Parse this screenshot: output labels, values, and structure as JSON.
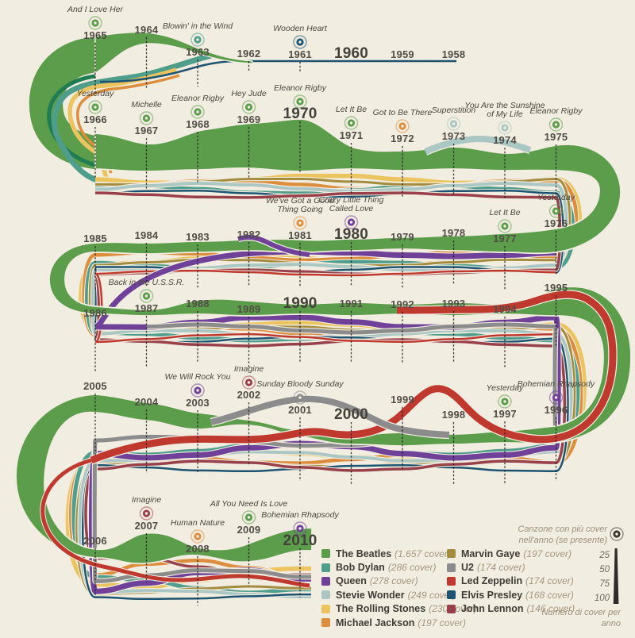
{
  "chart_data": {
    "type": "area",
    "subtype": "serpentine-streamgraph-timeline",
    "description": "Cover songs per artist per year, 1958-2010, drawn as a snaking multi-row stream; ribbon thickness encodes number of covers per year; a bullseye marks the most-covered song of each year when present.",
    "legend_position": "bottom-right",
    "captions": {
      "top_song_caption": "Canzone con più cover nell'anno (se presente)",
      "thickness_caption": "Numero di cover per anno"
    },
    "scale": {
      "values": [
        "25",
        "50",
        "75",
        "100"
      ]
    },
    "artists": [
      {
        "key": "beatles",
        "name": "The Beatles",
        "count_label": "(1.657 cover)",
        "color": "#5b9d4b",
        "column": 1
      },
      {
        "key": "dylan",
        "name": "Bob Dylan",
        "count_label": "(286 cover)",
        "color": "#4f9d8b",
        "column": 1
      },
      {
        "key": "queen",
        "name": "Queen",
        "count_label": "(278 cover)",
        "color": "#6f4199",
        "column": 1
      },
      {
        "key": "stevie",
        "name": "Stevie Wonder",
        "count_label": "(249 cover)",
        "color": "#abc7c3",
        "column": 1
      },
      {
        "key": "stones",
        "name": "The Rolling Stones",
        "count_label": "(230 cover)",
        "color": "#ecc45f",
        "column": 1
      },
      {
        "key": "jackson",
        "name": "Michael Jackson",
        "count_label": "(197 cover)",
        "color": "#dc8e3d",
        "column": 1
      },
      {
        "key": "gaye",
        "name": "Marvin Gaye",
        "count_label": "(197 cover)",
        "color": "#a48c3f",
        "column": 2
      },
      {
        "key": "u2",
        "name": "U2",
        "count_label": "(174 cover)",
        "color": "#8c8c8c",
        "column": 2
      },
      {
        "key": "ledzep",
        "name": "Led Zeppelin",
        "count_label": "(174 cover)",
        "color": "#c0392f",
        "column": 2
      },
      {
        "key": "elvis",
        "name": "Elvis Presley",
        "count_label": "(168 cover)",
        "color": "#1c5471",
        "column": 2
      },
      {
        "key": "lennon",
        "name": "John Lennon",
        "count_label": "(146 cover)",
        "color": "#98414a",
        "column": 2
      }
    ],
    "years": [
      {
        "label": "1965",
        "row": 0,
        "col": 0,
        "song": "And I Love Her",
        "artist": "beatles"
      },
      {
        "label": "1964",
        "row": 0,
        "col": 1
      },
      {
        "label": "1963",
        "row": 0,
        "col": 2,
        "song": "Blowin' in the Wind",
        "artist": "dylan"
      },
      {
        "label": "1962",
        "row": 0,
        "col": 3
      },
      {
        "label": "1961",
        "row": 0,
        "col": 4,
        "song": "Wooden Heart",
        "artist": "elvis"
      },
      {
        "label": "1960",
        "row": 0,
        "col": 5,
        "major": true
      },
      {
        "label": "1959",
        "row": 0,
        "col": 6
      },
      {
        "label": "1958",
        "row": 0,
        "col": 7
      },
      {
        "label": "1966",
        "row": 1,
        "col": 0,
        "song": "Yesterday",
        "artist": "beatles"
      },
      {
        "label": "1967",
        "row": 1,
        "col": 1,
        "song": "Michelle",
        "artist": "beatles"
      },
      {
        "label": "1968",
        "row": 1,
        "col": 2,
        "song": "Eleanor Rigby",
        "artist": "beatles"
      },
      {
        "label": "1969",
        "row": 1,
        "col": 3,
        "song": "Hey Jude",
        "artist": "beatles"
      },
      {
        "label": "1970",
        "row": 1,
        "col": 4,
        "major": true,
        "song": "Eleanor Rigby",
        "artist": "beatles"
      },
      {
        "label": "1971",
        "row": 1,
        "col": 5,
        "song": "Let It Be",
        "artist": "beatles"
      },
      {
        "label": "1972",
        "row": 1,
        "col": 6,
        "song": "Got to Be There",
        "artist": "jackson"
      },
      {
        "label": "1973",
        "row": 1,
        "col": 7,
        "song": "Superstition",
        "artist": "stevie"
      },
      {
        "label": "1974",
        "row": 1,
        "col": 8,
        "song": "You Are the Sunshine of My Life",
        "artist": "stevie"
      },
      {
        "label": "1975",
        "row": 1,
        "col": 9,
        "song": "Eleanor Rigby",
        "artist": "beatles"
      },
      {
        "label": "1985",
        "row": 2,
        "col": 0
      },
      {
        "label": "1984",
        "row": 2,
        "col": 1
      },
      {
        "label": "1983",
        "row": 2,
        "col": 2
      },
      {
        "label": "1982",
        "row": 2,
        "col": 3
      },
      {
        "label": "1981",
        "row": 2,
        "col": 4,
        "song": "We've Got a Good Thing Going",
        "artist": "jackson"
      },
      {
        "label": "1980",
        "row": 2,
        "col": 5,
        "major": true,
        "song": "Crazy Little Thing Called Love",
        "artist": "queen"
      },
      {
        "label": "1979",
        "row": 2,
        "col": 6
      },
      {
        "label": "1978",
        "row": 2,
        "col": 7
      },
      {
        "label": "1977",
        "row": 2,
        "col": 8,
        "song": "Let It Be",
        "artist": "beatles"
      },
      {
        "label": "1976",
        "row": 2,
        "col": 9,
        "song": "Yesterday",
        "artist": "beatles"
      },
      {
        "label": "1986",
        "row": 3,
        "col": 0
      },
      {
        "label": "1987",
        "row": 3,
        "col": 1,
        "song": "Back in the U.S.S.R.",
        "artist": "beatles"
      },
      {
        "label": "1988",
        "row": 3,
        "col": 2
      },
      {
        "label": "1989",
        "row": 3,
        "col": 3
      },
      {
        "label": "1990",
        "row": 3,
        "col": 4,
        "major": true
      },
      {
        "label": "1991",
        "row": 3,
        "col": 5
      },
      {
        "label": "1992",
        "row": 3,
        "col": 6
      },
      {
        "label": "1993",
        "row": 3,
        "col": 7
      },
      {
        "label": "1994",
        "row": 3,
        "col": 8
      },
      {
        "label": "1995",
        "row": 3,
        "col": 9
      },
      {
        "label": "2005",
        "row": 4,
        "col": 0
      },
      {
        "label": "2004",
        "row": 4,
        "col": 1
      },
      {
        "label": "2003",
        "row": 4,
        "col": 2,
        "song": "We Will Rock You",
        "artist": "queen"
      },
      {
        "label": "2002",
        "row": 4,
        "col": 3,
        "song": "Imagine",
        "artist": "lennon"
      },
      {
        "label": "2001",
        "row": 4,
        "col": 4,
        "song": "Sunday Bloody Sunday",
        "artist": "u2"
      },
      {
        "label": "2000",
        "row": 4,
        "col": 5,
        "major": true
      },
      {
        "label": "1999",
        "row": 4,
        "col": 6
      },
      {
        "label": "1998",
        "row": 4,
        "col": 7
      },
      {
        "label": "1997",
        "row": 4,
        "col": 8,
        "song": "Yesterday",
        "artist": "beatles"
      },
      {
        "label": "1996",
        "row": 4,
        "col": 9,
        "song": "Bohemian Rhapsody",
        "artist": "queen"
      },
      {
        "label": "2006",
        "row": 5,
        "col": 0
      },
      {
        "label": "2007",
        "row": 5,
        "col": 1,
        "song": "Imagine",
        "artist": "lennon"
      },
      {
        "label": "2008",
        "row": 5,
        "col": 2,
        "song": "Human Nature",
        "artist": "jackson"
      },
      {
        "label": "2009",
        "row": 5,
        "col": 3,
        "song": "All You Need Is Love",
        "artist": "beatles"
      },
      {
        "label": "2010",
        "row": 5,
        "col": 4,
        "major": true,
        "song": "Bohemian Rhapsody",
        "artist": "queen"
      }
    ]
  }
}
